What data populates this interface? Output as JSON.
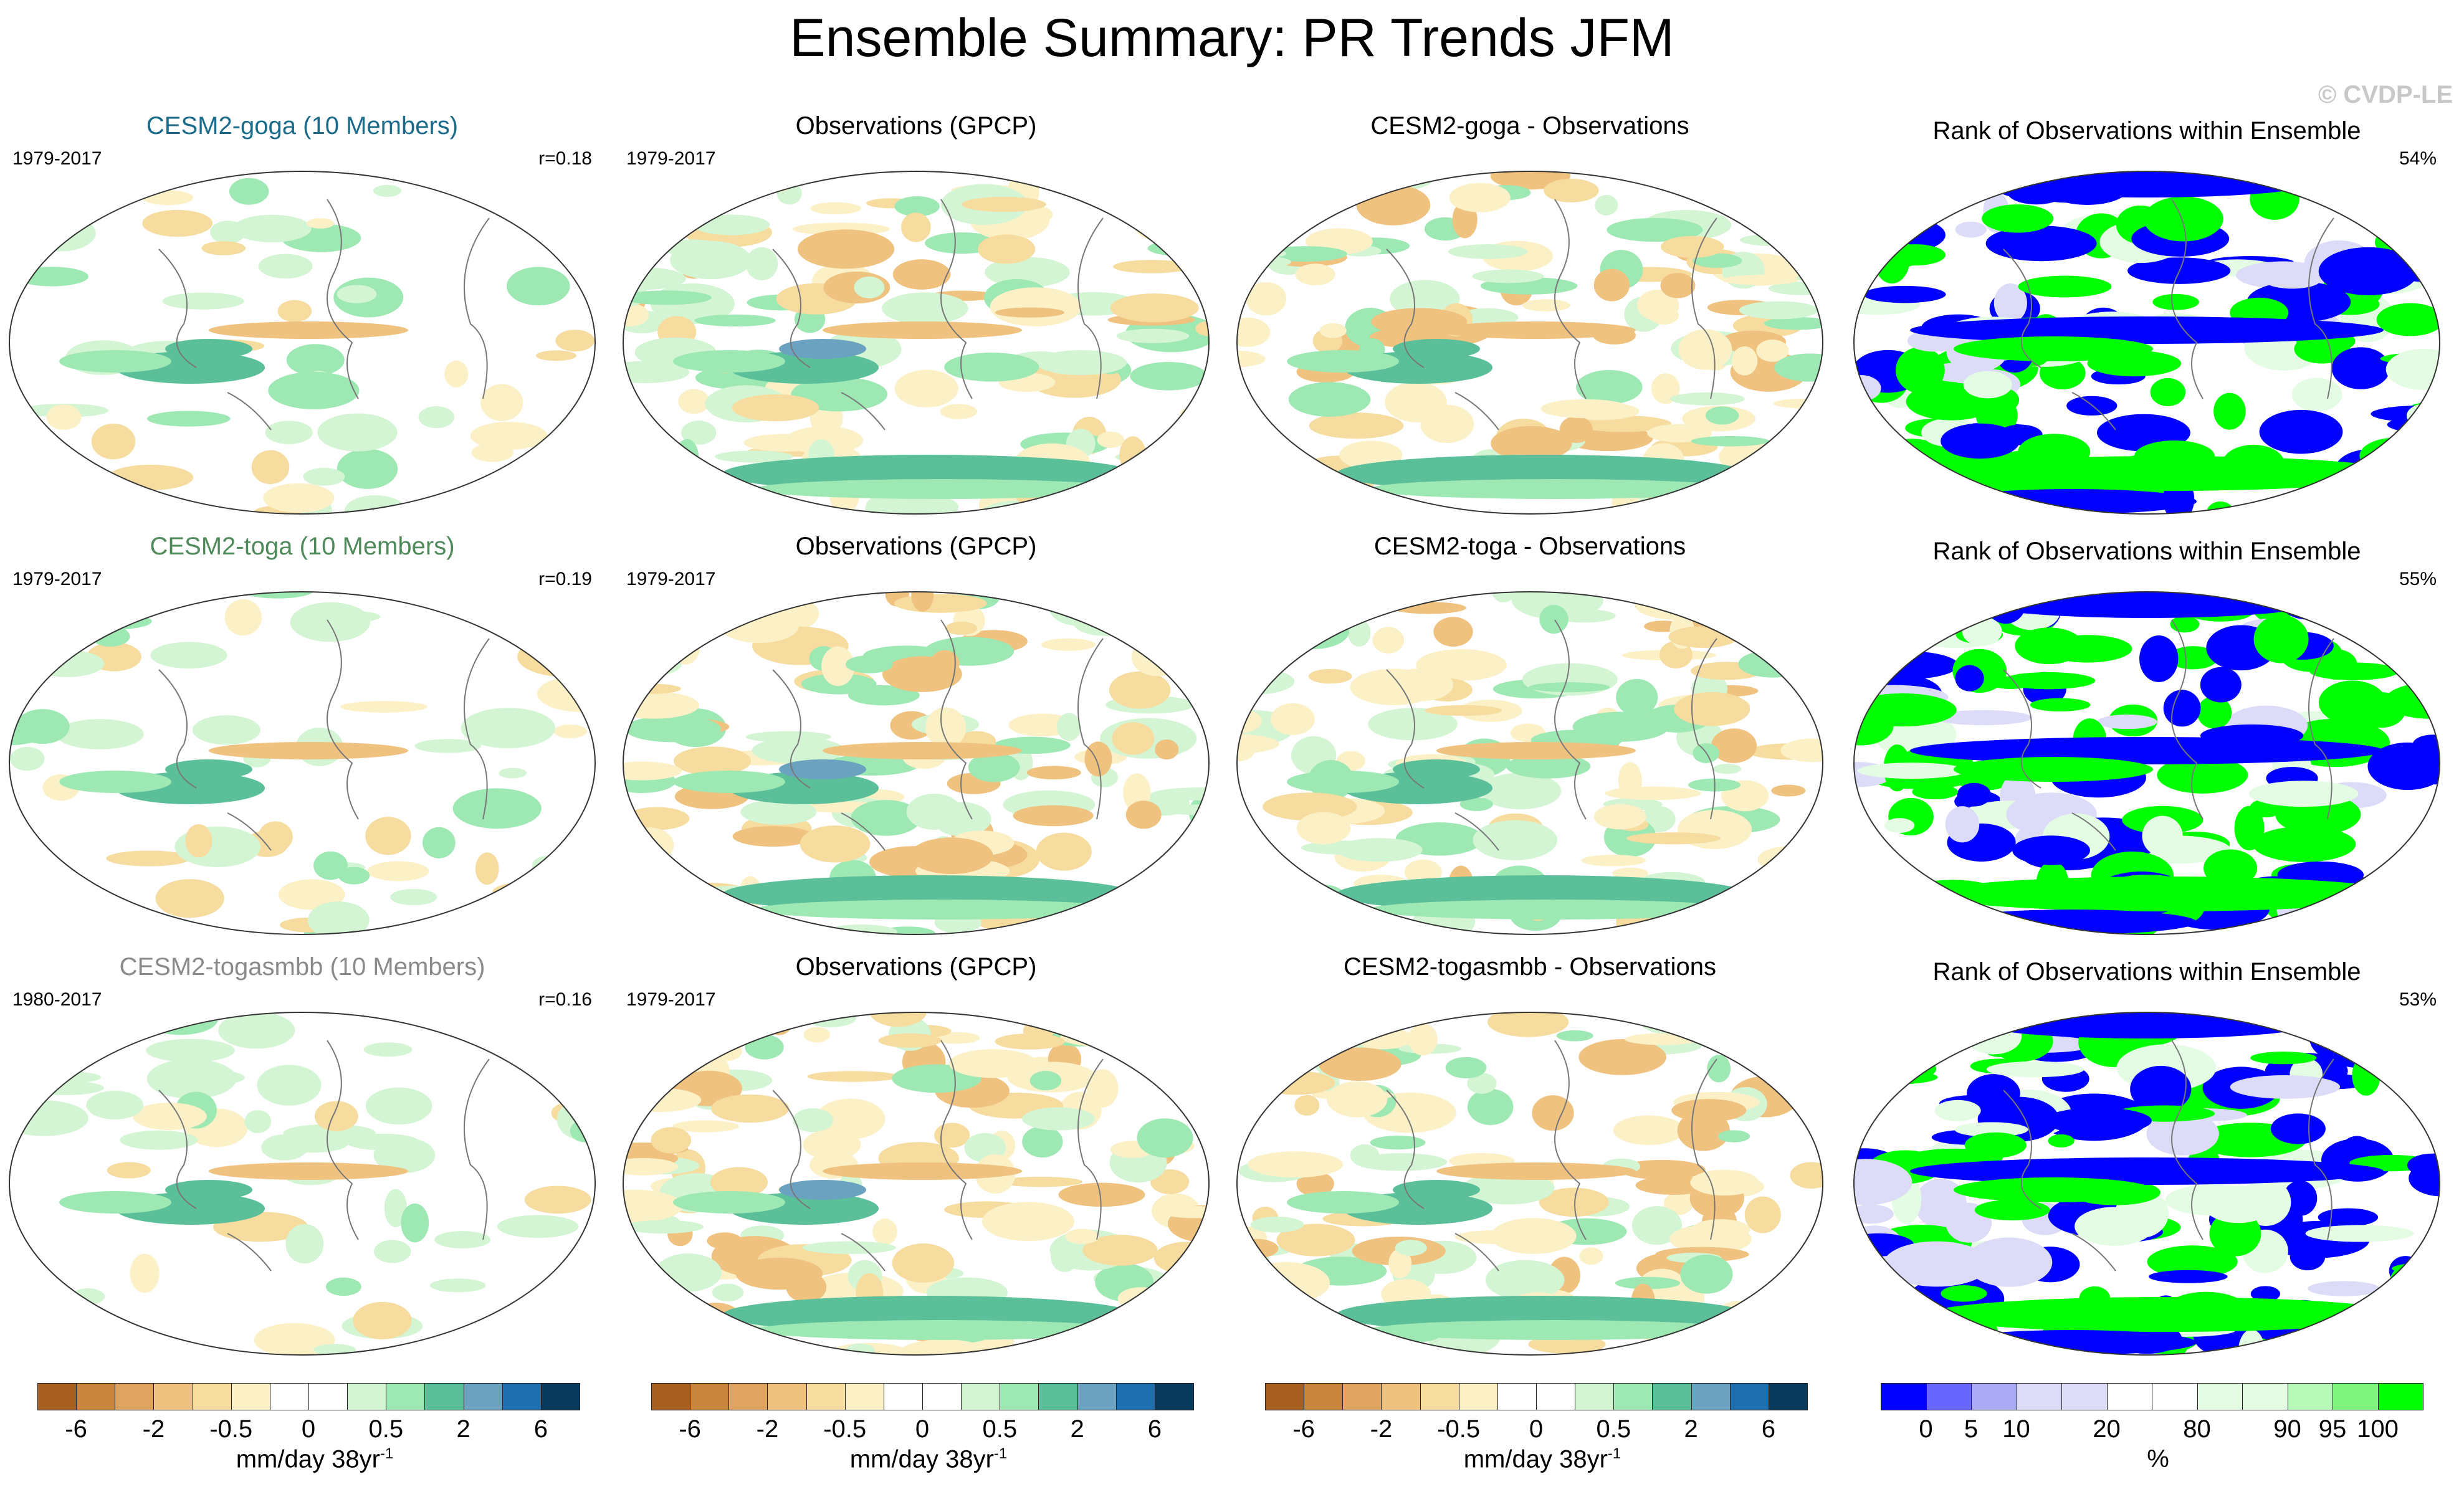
{
  "title": "Ensemble Summary: PR Trends JFM",
  "watermark": "© CVDP-LE",
  "rows": [
    {
      "model": {
        "title": "CESM2-goga (10 Members)",
        "title_color": "#1a6a8a",
        "years": "1979-2017",
        "stat": "r=0.18"
      },
      "obs": {
        "title": "Observations (GPCP)",
        "years": "1979-2017"
      },
      "diff": {
        "title": "CESM2-goga - Observations"
      },
      "rank": {
        "title": "Rank of Observations within Ensemble",
        "stat": "54%"
      }
    },
    {
      "model": {
        "title": "CESM2-toga (10 Members)",
        "title_color": "#4f8a5a",
        "years": "1979-2017",
        "stat": "r=0.19"
      },
      "obs": {
        "title": "Observations (GPCP)",
        "years": "1979-2017"
      },
      "diff": {
        "title": "CESM2-toga - Observations"
      },
      "rank": {
        "title": "Rank of Observations within Ensemble",
        "stat": "55%"
      }
    },
    {
      "model": {
        "title": "CESM2-togasmbb (10 Members)",
        "title_color": "#8a8a8a",
        "years": "1980-2017",
        "stat": "r=0.16"
      },
      "obs": {
        "title": "Observations (GPCP)",
        "years": "1979-2017"
      },
      "diff": {
        "title": "CESM2-togasmbb - Observations"
      },
      "rank": {
        "title": "Rank of Observations within Ensemble",
        "stat": "53%"
      }
    }
  ],
  "trend_colorbar": {
    "colors": [
      "#a65f1e",
      "#c7853e",
      "#dea460",
      "#efc27f",
      "#f6dc9f",
      "#fcf1c6",
      "#ffffff",
      "#ffffff",
      "#d3f5d3",
      "#9ee8b4",
      "#5bbf9a",
      "#6aa2c0",
      "#1f6fae",
      "#0a3a5c"
    ],
    "ticks": [
      "-6",
      "-2",
      "-0.5",
      "0",
      "0.5",
      "2",
      "6"
    ],
    "unit": "mm/day 38yr",
    "unit_sup": "-1"
  },
  "rank_colorbar": {
    "colors": [
      "#0000ff",
      "#6666ff",
      "#aaaaf5",
      "#dcdcf8",
      "#dcdcf8",
      "#ffffff",
      "#ffffff",
      "#e4fce4",
      "#e4fce4",
      "#b8f8b8",
      "#7ff57f",
      "#00ff00"
    ],
    "ticks": [
      "0",
      "5",
      "10",
      "20",
      "80",
      "90",
      "95",
      "100"
    ],
    "unit": "%"
  },
  "map_colors": {
    "brown_dark": "#dea460",
    "brown": "#efc27f",
    "brown_light": "#f6dc9f",
    "tan": "#fcf1c6",
    "green_light": "#d3f5d3",
    "green": "#9ee8b4",
    "teal": "#5bbf9a",
    "blue": "#6aa2c0",
    "rank_blue": "#0000ff",
    "rank_green": "#00ff00",
    "rank_lav": "#dcdcf8",
    "rank_pale": "#e4fce4",
    "coast": "#777777"
  }
}
